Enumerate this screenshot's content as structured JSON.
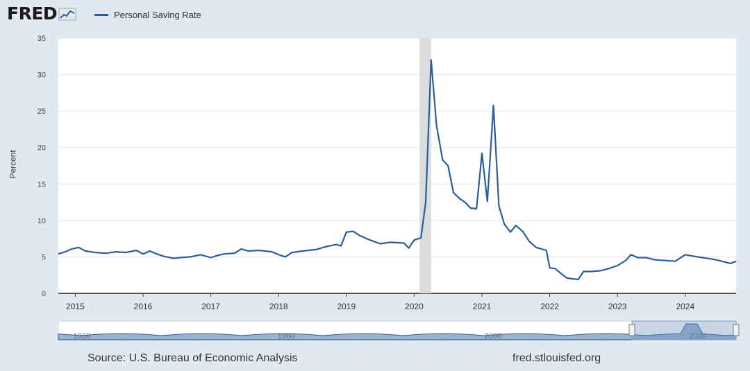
{
  "brand": {
    "name": "FRED"
  },
  "legend": {
    "label": "Personal Saving Rate",
    "color": "#2b5d9b"
  },
  "footer": {
    "source": "Source: U.S. Bureau of Economic Analysis",
    "site": "fred.stlouisfed.org"
  },
  "navigator": {
    "labels": [
      "1960",
      "1980",
      "2000",
      "2020"
    ]
  },
  "chart_data": {
    "type": "line",
    "title": "",
    "xlabel": "",
    "ylabel": "Percent",
    "ylim": [
      0,
      35
    ],
    "yticks": [
      0,
      5,
      10,
      15,
      20,
      25,
      30,
      35
    ],
    "xlim": [
      2014.75,
      2024.75
    ],
    "xticks": [
      2015,
      2016,
      2017,
      2018,
      2019,
      2020,
      2021,
      2022,
      2023,
      2024
    ],
    "grid": true,
    "legend": "top-left",
    "recession": [
      2020.08,
      2020.25
    ],
    "series": [
      {
        "name": "Personal Saving Rate",
        "color": "#2b5d9b",
        "x": [
          2014.75,
          2014.85,
          2014.95,
          2015.05,
          2015.15,
          2015.3,
          2015.45,
          2015.6,
          2015.75,
          2015.9,
          2016.0,
          2016.1,
          2016.2,
          2016.3,
          2016.45,
          2016.55,
          2016.7,
          2016.85,
          2017.0,
          2017.1,
          2017.2,
          2017.35,
          2017.45,
          2017.55,
          2017.7,
          2017.8,
          2017.9,
          2018.0,
          2018.1,
          2018.2,
          2018.35,
          2018.55,
          2018.7,
          2018.85,
          2018.92,
          2019.0,
          2019.1,
          2019.2,
          2019.35,
          2019.5,
          2019.65,
          2019.85,
          2019.92,
          2020.0,
          2020.1,
          2020.17,
          2020.25,
          2020.33,
          2020.42,
          2020.5,
          2020.58,
          2020.67,
          2020.75,
          2020.83,
          2020.92,
          2021.0,
          2021.08,
          2021.17,
          2021.25,
          2021.33,
          2021.42,
          2021.5,
          2021.6,
          2021.7,
          2021.8,
          2021.95,
          2022.0,
          2022.08,
          2022.17,
          2022.25,
          2022.33,
          2022.42,
          2022.5,
          2022.62,
          2022.75,
          2022.87,
          2023.0,
          2023.12,
          2023.2,
          2023.3,
          2023.42,
          2023.55,
          2023.7,
          2023.85,
          2024.0,
          2024.12,
          2024.25,
          2024.4,
          2024.5,
          2024.58,
          2024.67,
          2024.75
        ],
        "values": [
          5.4,
          5.7,
          6.1,
          6.3,
          5.8,
          5.6,
          5.5,
          5.7,
          5.6,
          5.9,
          5.4,
          5.8,
          5.4,
          5.1,
          4.8,
          4.9,
          5.0,
          5.3,
          4.9,
          5.2,
          5.4,
          5.5,
          6.1,
          5.8,
          5.9,
          5.8,
          5.7,
          5.3,
          5.0,
          5.6,
          5.8,
          6.0,
          6.4,
          6.7,
          6.5,
          8.4,
          8.5,
          7.9,
          7.3,
          6.8,
          7.0,
          6.9,
          6.2,
          7.3,
          7.6,
          12.5,
          32.0,
          23.0,
          18.3,
          17.5,
          13.8,
          13.0,
          12.5,
          11.7,
          11.6,
          19.2,
          12.6,
          25.8,
          12.0,
          9.5,
          8.4,
          9.3,
          8.5,
          7.1,
          6.3,
          5.9,
          3.5,
          3.4,
          2.7,
          2.1,
          2.0,
          1.9,
          3.0,
          3.0,
          3.1,
          3.4,
          3.8,
          4.5,
          5.3,
          4.9,
          4.9,
          4.6,
          4.5,
          4.4,
          5.3,
          5.1,
          4.9,
          4.7,
          4.5,
          4.3,
          4.1,
          4.4
        ]
      }
    ]
  }
}
